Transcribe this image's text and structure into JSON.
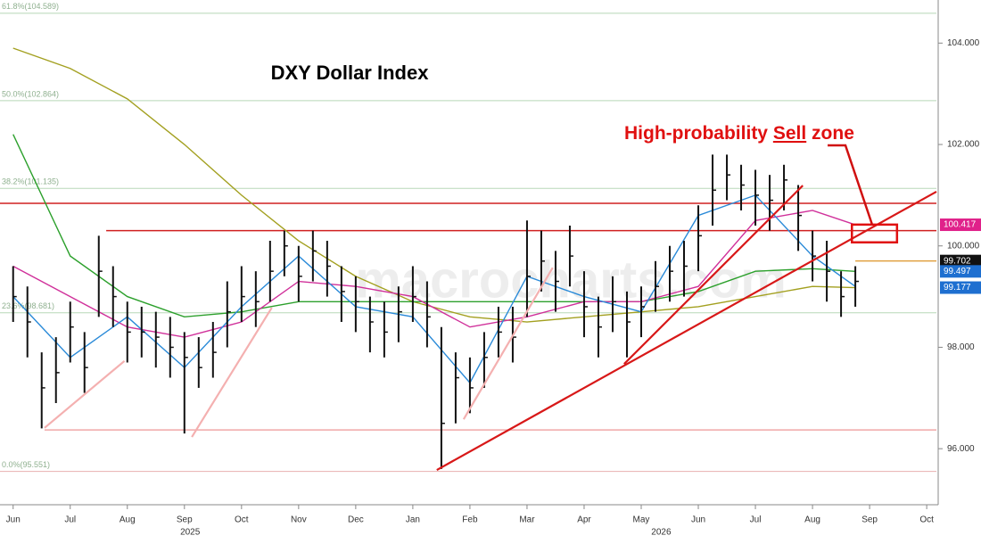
{
  "chart_data": {
    "type": "ohlc",
    "title": "DXY Dollar Index",
    "watermark": "macrocharts.com",
    "annotation": {
      "parts": [
        "High-probability",
        "Sell",
        "zone"
      ],
      "color": "#e01010"
    },
    "xlim": [
      -0.23,
      16.17
    ],
    "ylim": [
      95,
      104.85
    ],
    "xticks": [
      {
        "value": 0,
        "label": "Jun"
      },
      {
        "value": 1,
        "label": "Jul"
      },
      {
        "value": 2,
        "label": "Aug"
      },
      {
        "value": 3,
        "label": "Sep"
      },
      {
        "value": 4,
        "label": "Oct"
      },
      {
        "value": 5,
        "label": "Nov"
      },
      {
        "value": 6,
        "label": "Dec"
      },
      {
        "value": 7,
        "label": "Jan"
      },
      {
        "value": 8,
        "label": "Feb"
      },
      {
        "value": 9,
        "label": "Mar"
      },
      {
        "value": 10,
        "label": "Apr"
      },
      {
        "value": 11,
        "label": "May"
      },
      {
        "value": 12,
        "label": "Jun"
      },
      {
        "value": 13,
        "label": "Jul"
      },
      {
        "value": 14,
        "label": "Aug"
      },
      {
        "value": 15,
        "label": "Sep"
      },
      {
        "value": 16,
        "label": "Oct"
      }
    ],
    "year_labels": [
      {
        "value": 3.1,
        "label": "2025"
      },
      {
        "value": 11.35,
        "label": "2026"
      }
    ],
    "yticks": [
      {
        "value": 96,
        "label": "96.000"
      },
      {
        "value": 98,
        "label": "98.000"
      },
      {
        "value": 100,
        "label": "100.000"
      },
      {
        "value": 102,
        "label": "102.000"
      },
      {
        "value": 104,
        "label": "104.000"
      }
    ],
    "color": "#111111",
    "x": [
      0,
      0.25,
      0.5,
      0.75,
      1,
      1.25,
      1.5,
      1.75,
      2,
      2.25,
      2.5,
      2.75,
      3,
      3.25,
      3.5,
      3.75,
      4,
      4.25,
      4.5,
      4.75,
      5,
      5.25,
      5.5,
      5.75,
      6,
      6.25,
      6.5,
      6.75,
      7,
      7.25,
      7.5,
      7.75,
      8,
      8.25,
      8.5,
      8.75,
      9,
      9.25,
      9.5,
      9.75,
      10,
      10.25,
      10.5,
      10.75,
      11,
      11.25,
      11.5,
      11.75,
      12,
      12.25,
      12.5,
      12.75,
      13,
      13.25,
      13.5,
      13.75,
      14,
      14.25,
      14.5,
      14.75
    ],
    "high": [
      99.6,
      99.2,
      97.9,
      98.2,
      98.9,
      98.3,
      100.2,
      99.6,
      98.9,
      98.8,
      98.7,
      98.6,
      98.3,
      98.2,
      98.5,
      99.3,
      99.6,
      99.5,
      100.1,
      100.3,
      100.0,
      100.3,
      100.1,
      99.6,
      99.4,
      99.0,
      98.9,
      99.2,
      99.6,
      99.3,
      98.4,
      97.9,
      97.8,
      98.3,
      98.8,
      98.8,
      100.5,
      100.3,
      99.9,
      100.4,
      99.5,
      99.0,
      99.4,
      99.1,
      99.2,
      99.7,
      100.0,
      100.1,
      100.8,
      101.8,
      101.8,
      101.6,
      101.5,
      101.4,
      101.6,
      101.2,
      100.3,
      100.1,
      99.5,
      99.6
    ],
    "low": [
      98.5,
      97.8,
      96.4,
      96.9,
      97.7,
      97.1,
      98.6,
      98.4,
      97.7,
      97.8,
      97.6,
      97.4,
      96.3,
      97.2,
      97.4,
      98.0,
      98.5,
      98.4,
      98.9,
      99.4,
      98.9,
      99.3,
      99.0,
      98.5,
      98.3,
      97.9,
      97.8,
      98.1,
      98.5,
      98.0,
      95.6,
      96.5,
      96.7,
      97.2,
      97.8,
      97.7,
      98.6,
      99.1,
      98.7,
      99.2,
      98.2,
      97.8,
      98.3,
      97.8,
      98.2,
      98.7,
      98.9,
      99.0,
      99.5,
      100.4,
      100.9,
      100.7,
      100.4,
      100.3,
      100.7,
      99.9,
      99.3,
      98.9,
      98.6,
      98.8
    ],
    "close": [
      99.0,
      98.5,
      97.2,
      97.5,
      98.4,
      97.6,
      99.5,
      99.0,
      98.3,
      98.3,
      98.2,
      98.0,
      97.8,
      97.6,
      97.9,
      98.7,
      99.0,
      98.9,
      99.5,
      100.0,
      99.4,
      99.9,
      99.6,
      99.1,
      98.9,
      98.5,
      98.3,
      98.7,
      99.0,
      98.6,
      96.5,
      97.4,
      97.2,
      97.8,
      98.3,
      98.2,
      99.4,
      99.7,
      99.3,
      99.8,
      98.8,
      98.4,
      98.9,
      98.5,
      98.8,
      99.2,
      99.5,
      99.6,
      100.2,
      101.1,
      101.4,
      101.2,
      101.0,
      100.9,
      101.3,
      100.6,
      99.8,
      99.5,
      99.0,
      99.3
    ],
    "lines": [
      {
        "color": "#a3a020",
        "x": [
          0,
          1,
          2,
          3,
          4,
          5,
          6,
          7,
          8,
          9,
          10,
          11,
          12,
          13,
          14,
          14.75
        ],
        "values": [
          103.9,
          103.5,
          102.9,
          102.0,
          101.0,
          100.1,
          99.4,
          98.9,
          98.6,
          98.5,
          98.6,
          98.7,
          98.8,
          99.0,
          99.2,
          99.177
        ]
      },
      {
        "color": "#2ca02c",
        "x": [
          0,
          1,
          2,
          3,
          4,
          5,
          6,
          7,
          8,
          9,
          10,
          11,
          12,
          13,
          14,
          14.75
        ],
        "values": [
          102.2,
          99.8,
          99.0,
          98.6,
          98.7,
          98.9,
          98.9,
          98.9,
          98.9,
          98.9,
          98.9,
          98.9,
          99.1,
          99.5,
          99.55,
          99.497
        ]
      },
      {
        "color": "#d0309a",
        "x": [
          0,
          1,
          2,
          3,
          4,
          5,
          6,
          7,
          8,
          9,
          10,
          11,
          12,
          13,
          14,
          14.75
        ],
        "values": [
          99.6,
          99.0,
          98.4,
          98.2,
          98.5,
          99.3,
          99.2,
          99.0,
          98.4,
          98.6,
          98.9,
          98.9,
          99.2,
          100.5,
          100.7,
          100.417
        ]
      },
      {
        "color": "#2a8ad8",
        "x": [
          0,
          1,
          2,
          3,
          4,
          5,
          6,
          7,
          8,
          9,
          10,
          11,
          12,
          13,
          14,
          14.75
        ],
        "values": [
          99.0,
          97.8,
          98.6,
          97.6,
          98.8,
          99.8,
          98.8,
          98.6,
          97.3,
          99.4,
          99.0,
          98.7,
          100.6,
          101.0,
          99.8,
          99.2
        ]
      }
    ],
    "levels": [
      {
        "value": 104.589,
        "label": "61.8%(104.589)",
        "color": "#b8d8b8"
      },
      {
        "value": 102.864,
        "label": "50.0%(102.864)",
        "color": "#b8d8b8"
      },
      {
        "value": 101.135,
        "label": "38.2%(101.135)",
        "color": "#b8d8b8"
      },
      {
        "value": 98.681,
        "label": "23.6%(98.681)",
        "color": "#b8d8b8"
      },
      {
        "value": 95.551,
        "label": "0.0%(95.551)",
        "color": "#e8b0b0"
      }
    ],
    "hlines": [
      {
        "value": 100.84,
        "x_from": -0.23,
        "color": "#d02020"
      },
      {
        "value": 100.3,
        "x_from": 1.63,
        "color": "#d02020"
      },
      {
        "value": 96.37,
        "x_from": 0.55,
        "color": "#f0a8a8"
      },
      {
        "value": 99.702,
        "x_from": 14.75,
        "color": "#e0a040"
      }
    ],
    "trendlines": [
      {
        "x": [
          7.42,
          16.17
        ],
        "y": [
          95.58,
          101.07
        ],
        "color": "#d81818"
      },
      {
        "x": [
          10.7,
          13.83
        ],
        "y": [
          97.67,
          101.19
        ],
        "color": "#d81818"
      },
      {
        "x": [
          0.55,
          1.95
        ],
        "y": [
          96.41,
          97.73
        ],
        "color": "#f4b0b0"
      },
      {
        "x": [
          3.13,
          4.53
        ],
        "y": [
          96.23,
          98.78
        ],
        "color": "#f4b0b0"
      },
      {
        "x": [
          7.89,
          9.45
        ],
        "y": [
          96.58,
          99.57
        ],
        "color": "#f4b0b0"
      }
    ],
    "zone": {
      "x": [
        14.69,
        15.48
      ],
      "y": [
        100.07,
        100.42
      ],
      "color": "#e01010"
    },
    "last_values": [
      {
        "value": 100.417,
        "color": "#e0218a"
      },
      {
        "value": 99.702,
        "color": "#111111"
      },
      {
        "value": 99.497,
        "color": "#1e6fd0"
      },
      {
        "value": 99.177,
        "color": "#1e6fd0"
      }
    ]
  }
}
